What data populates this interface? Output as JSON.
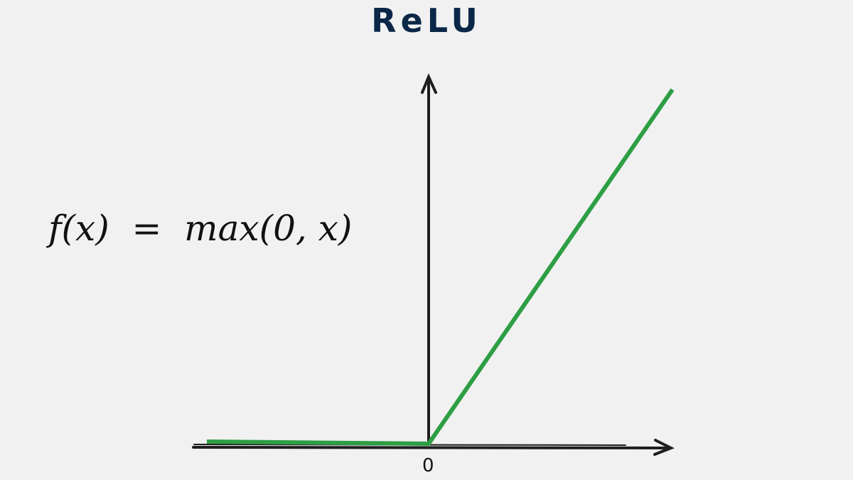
{
  "title": "ReLU",
  "formula": "f(x)  =  max(0, x)",
  "x_axis_tick": "0",
  "colors": {
    "title": "#0a2747",
    "function_line": "#2e9e44",
    "axes": "#1e1e1e",
    "background": "#f1f1f1"
  }
}
